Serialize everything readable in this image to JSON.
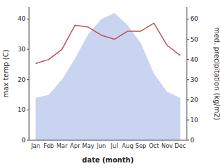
{
  "chart_data": {
    "type": "area",
    "categories": [
      "Jan",
      "Feb",
      "Mar",
      "Apr",
      "May",
      "Jun",
      "Jul",
      "Aug",
      "Sep",
      "Oct",
      "Nov",
      "Dec"
    ],
    "xlabel": "date (month)",
    "ylabel": "max temp (C)",
    "y2label": "med. precipitation (kg/m2)",
    "series": [
      {
        "type": "area",
        "color": "#c8d4f0",
        "values": [
          14,
          15,
          20,
          27,
          35,
          40,
          42,
          38,
          32,
          22,
          16,
          14
        ]
      },
      {
        "type": "line",
        "color": "#c05050",
        "axis": "y2",
        "values": [
          38,
          40,
          45,
          57,
          56,
          52,
          50,
          54,
          54,
          58,
          47,
          42
        ]
      }
    ],
    "ylim": [
      0,
      44
    ],
    "yticks": [
      0,
      10,
      20,
      30,
      40
    ],
    "y2lim": [
      0,
      66
    ],
    "y2ticks": [
      0,
      10,
      20,
      30,
      40,
      50,
      60
    ]
  }
}
